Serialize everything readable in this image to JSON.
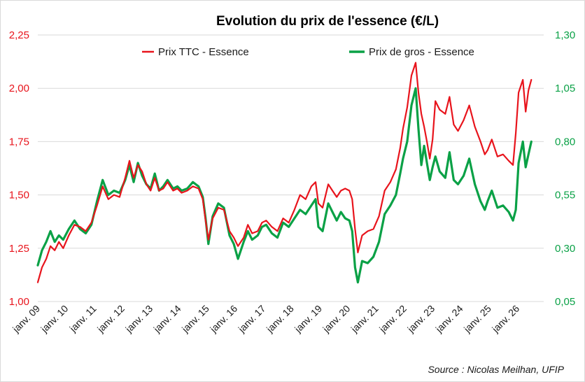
{
  "chart_data": {
    "type": "line",
    "title": "Evolution du prix de l'essence (€/L)",
    "source": "Source : Nicolas Meilhan, UFIP",
    "legend_position": "top",
    "grid": "horizontal",
    "x_ticks": [
      "janv. 09",
      "janv. 10",
      "janv. 11",
      "janv. 12",
      "janv. 13",
      "janv. 14",
      "janv. 15",
      "janv. 16",
      "janv. 17",
      "janv. 18",
      "janv. 19",
      "janv. 20",
      "janv. 21",
      "janv. 22",
      "janv. 23",
      "janv. 24",
      "janv. 25",
      "janv. 26"
    ],
    "y_left": {
      "ticks": [
        "1,00",
        "1,25",
        "1,50",
        "1,75",
        "2,00",
        "2,25"
      ],
      "min": 1.0,
      "max": 2.25
    },
    "y_right": {
      "ticks": [
        "0,05",
        "0,30",
        "0,55",
        "0,80",
        "1,05",
        "1,30"
      ],
      "min": 0.05,
      "max": 1.3
    },
    "colors": {
      "ttc": "#e8141c",
      "gros": "#0aa146"
    },
    "series": [
      {
        "name": "Prix TTC - Essence",
        "axis": "left",
        "points": [
          [
            2009.0,
            1.09
          ],
          [
            2009.15,
            1.16
          ],
          [
            2009.3,
            1.2
          ],
          [
            2009.45,
            1.26
          ],
          [
            2009.6,
            1.24
          ],
          [
            2009.75,
            1.28
          ],
          [
            2009.9,
            1.25
          ],
          [
            2010.1,
            1.31
          ],
          [
            2010.3,
            1.36
          ],
          [
            2010.5,
            1.35
          ],
          [
            2010.7,
            1.33
          ],
          [
            2010.9,
            1.37
          ],
          [
            2011.1,
            1.45
          ],
          [
            2011.3,
            1.54
          ],
          [
            2011.5,
            1.48
          ],
          [
            2011.7,
            1.5
          ],
          [
            2011.9,
            1.49
          ],
          [
            2012.1,
            1.58
          ],
          [
            2012.25,
            1.66
          ],
          [
            2012.4,
            1.58
          ],
          [
            2012.55,
            1.64
          ],
          [
            2012.7,
            1.61
          ],
          [
            2012.85,
            1.55
          ],
          [
            2013.0,
            1.52
          ],
          [
            2013.15,
            1.58
          ],
          [
            2013.3,
            1.52
          ],
          [
            2013.45,
            1.53
          ],
          [
            2013.6,
            1.56
          ],
          [
            2013.8,
            1.52
          ],
          [
            2013.95,
            1.53
          ],
          [
            2014.1,
            1.51
          ],
          [
            2014.3,
            1.52
          ],
          [
            2014.5,
            1.54
          ],
          [
            2014.7,
            1.53
          ],
          [
            2014.85,
            1.48
          ],
          [
            2014.95,
            1.38
          ],
          [
            2015.05,
            1.29
          ],
          [
            2015.2,
            1.39
          ],
          [
            2015.4,
            1.44
          ],
          [
            2015.6,
            1.43
          ],
          [
            2015.8,
            1.33
          ],
          [
            2015.95,
            1.3
          ],
          [
            2016.1,
            1.26
          ],
          [
            2016.3,
            1.3
          ],
          [
            2016.45,
            1.36
          ],
          [
            2016.6,
            1.32
          ],
          [
            2016.8,
            1.33
          ],
          [
            2016.95,
            1.37
          ],
          [
            2017.1,
            1.38
          ],
          [
            2017.3,
            1.35
          ],
          [
            2017.5,
            1.33
          ],
          [
            2017.7,
            1.39
          ],
          [
            2017.9,
            1.37
          ],
          [
            2018.1,
            1.43
          ],
          [
            2018.3,
            1.5
          ],
          [
            2018.5,
            1.48
          ],
          [
            2018.7,
            1.54
          ],
          [
            2018.85,
            1.56
          ],
          [
            2018.95,
            1.46
          ],
          [
            2019.1,
            1.44
          ],
          [
            2019.3,
            1.55
          ],
          [
            2019.45,
            1.52
          ],
          [
            2019.6,
            1.49
          ],
          [
            2019.75,
            1.52
          ],
          [
            2019.9,
            1.53
          ],
          [
            2020.05,
            1.52
          ],
          [
            2020.15,
            1.48
          ],
          [
            2020.25,
            1.34
          ],
          [
            2020.35,
            1.23
          ],
          [
            2020.5,
            1.31
          ],
          [
            2020.7,
            1.33
          ],
          [
            2020.9,
            1.34
          ],
          [
            2021.1,
            1.4
          ],
          [
            2021.3,
            1.52
          ],
          [
            2021.5,
            1.56
          ],
          [
            2021.7,
            1.62
          ],
          [
            2021.85,
            1.72
          ],
          [
            2021.95,
            1.81
          ],
          [
            2022.1,
            1.91
          ],
          [
            2022.25,
            2.06
          ],
          [
            2022.4,
            2.12
          ],
          [
            2022.5,
            1.98
          ],
          [
            2022.6,
            1.88
          ],
          [
            2022.7,
            1.82
          ],
          [
            2022.8,
            1.75
          ],
          [
            2022.9,
            1.67
          ],
          [
            2023.0,
            1.76
          ],
          [
            2023.1,
            1.94
          ],
          [
            2023.25,
            1.9
          ],
          [
            2023.45,
            1.88
          ],
          [
            2023.6,
            1.96
          ],
          [
            2023.75,
            1.83
          ],
          [
            2023.9,
            1.8
          ],
          [
            2024.1,
            1.85
          ],
          [
            2024.3,
            1.92
          ],
          [
            2024.5,
            1.82
          ],
          [
            2024.7,
            1.75
          ],
          [
            2024.85,
            1.69
          ],
          [
            2024.95,
            1.71
          ],
          [
            2025.1,
            1.76
          ],
          [
            2025.3,
            1.68
          ],
          [
            2025.5,
            1.69
          ],
          [
            2025.7,
            1.66
          ],
          [
            2025.85,
            1.64
          ],
          [
            2025.95,
            1.79
          ],
          [
            2026.05,
            1.98
          ],
          [
            2026.2,
            2.04
          ],
          [
            2026.3,
            1.89
          ],
          [
            2026.4,
            1.99
          ],
          [
            2026.5,
            2.04
          ]
        ]
      },
      {
        "name": "Prix de gros - Essence",
        "axis": "right",
        "points": [
          [
            2009.0,
            0.22
          ],
          [
            2009.15,
            0.29
          ],
          [
            2009.3,
            0.33
          ],
          [
            2009.45,
            0.38
          ],
          [
            2009.6,
            0.33
          ],
          [
            2009.75,
            0.36
          ],
          [
            2009.9,
            0.34
          ],
          [
            2010.1,
            0.39
          ],
          [
            2010.3,
            0.43
          ],
          [
            2010.5,
            0.39
          ],
          [
            2010.7,
            0.37
          ],
          [
            2010.9,
            0.41
          ],
          [
            2011.1,
            0.52
          ],
          [
            2011.3,
            0.62
          ],
          [
            2011.5,
            0.55
          ],
          [
            2011.7,
            0.57
          ],
          [
            2011.9,
            0.56
          ],
          [
            2012.1,
            0.62
          ],
          [
            2012.25,
            0.69
          ],
          [
            2012.4,
            0.61
          ],
          [
            2012.55,
            0.7
          ],
          [
            2012.7,
            0.64
          ],
          [
            2012.85,
            0.6
          ],
          [
            2013.0,
            0.58
          ],
          [
            2013.15,
            0.65
          ],
          [
            2013.3,
            0.57
          ],
          [
            2013.45,
            0.59
          ],
          [
            2013.6,
            0.62
          ],
          [
            2013.8,
            0.58
          ],
          [
            2013.95,
            0.59
          ],
          [
            2014.1,
            0.57
          ],
          [
            2014.3,
            0.58
          ],
          [
            2014.5,
            0.61
          ],
          [
            2014.7,
            0.59
          ],
          [
            2014.85,
            0.54
          ],
          [
            2014.95,
            0.44
          ],
          [
            2015.05,
            0.32
          ],
          [
            2015.2,
            0.45
          ],
          [
            2015.4,
            0.51
          ],
          [
            2015.6,
            0.49
          ],
          [
            2015.8,
            0.36
          ],
          [
            2015.95,
            0.32
          ],
          [
            2016.1,
            0.25
          ],
          [
            2016.3,
            0.33
          ],
          [
            2016.45,
            0.38
          ],
          [
            2016.6,
            0.34
          ],
          [
            2016.8,
            0.36
          ],
          [
            2016.95,
            0.4
          ],
          [
            2017.1,
            0.41
          ],
          [
            2017.3,
            0.37
          ],
          [
            2017.5,
            0.35
          ],
          [
            2017.7,
            0.42
          ],
          [
            2017.9,
            0.4
          ],
          [
            2018.1,
            0.44
          ],
          [
            2018.3,
            0.48
          ],
          [
            2018.5,
            0.46
          ],
          [
            2018.7,
            0.5
          ],
          [
            2018.85,
            0.53
          ],
          [
            2018.95,
            0.4
          ],
          [
            2019.1,
            0.38
          ],
          [
            2019.3,
            0.51
          ],
          [
            2019.45,
            0.47
          ],
          [
            2019.6,
            0.43
          ],
          [
            2019.75,
            0.47
          ],
          [
            2019.9,
            0.44
          ],
          [
            2020.05,
            0.43
          ],
          [
            2020.15,
            0.38
          ],
          [
            2020.25,
            0.21
          ],
          [
            2020.35,
            0.14
          ],
          [
            2020.5,
            0.24
          ],
          [
            2020.7,
            0.23
          ],
          [
            2020.9,
            0.26
          ],
          [
            2021.1,
            0.33
          ],
          [
            2021.3,
            0.46
          ],
          [
            2021.5,
            0.5
          ],
          [
            2021.7,
            0.55
          ],
          [
            2021.85,
            0.65
          ],
          [
            2021.95,
            0.72
          ],
          [
            2022.1,
            0.8
          ],
          [
            2022.25,
            0.97
          ],
          [
            2022.4,
            1.05
          ],
          [
            2022.5,
            0.86
          ],
          [
            2022.6,
            0.69
          ],
          [
            2022.7,
            0.78
          ],
          [
            2022.8,
            0.7
          ],
          [
            2022.9,
            0.62
          ],
          [
            2023.0,
            0.68
          ],
          [
            2023.1,
            0.73
          ],
          [
            2023.25,
            0.66
          ],
          [
            2023.45,
            0.63
          ],
          [
            2023.6,
            0.75
          ],
          [
            2023.75,
            0.62
          ],
          [
            2023.9,
            0.6
          ],
          [
            2024.1,
            0.64
          ],
          [
            2024.3,
            0.72
          ],
          [
            2024.5,
            0.6
          ],
          [
            2024.7,
            0.52
          ],
          [
            2024.85,
            0.48
          ],
          [
            2024.95,
            0.52
          ],
          [
            2025.1,
            0.57
          ],
          [
            2025.3,
            0.49
          ],
          [
            2025.5,
            0.5
          ],
          [
            2025.7,
            0.47
          ],
          [
            2025.85,
            0.43
          ],
          [
            2025.95,
            0.48
          ],
          [
            2026.05,
            0.7
          ],
          [
            2026.2,
            0.8
          ],
          [
            2026.3,
            0.68
          ],
          [
            2026.4,
            0.74
          ],
          [
            2026.5,
            0.8
          ]
        ]
      }
    ]
  }
}
